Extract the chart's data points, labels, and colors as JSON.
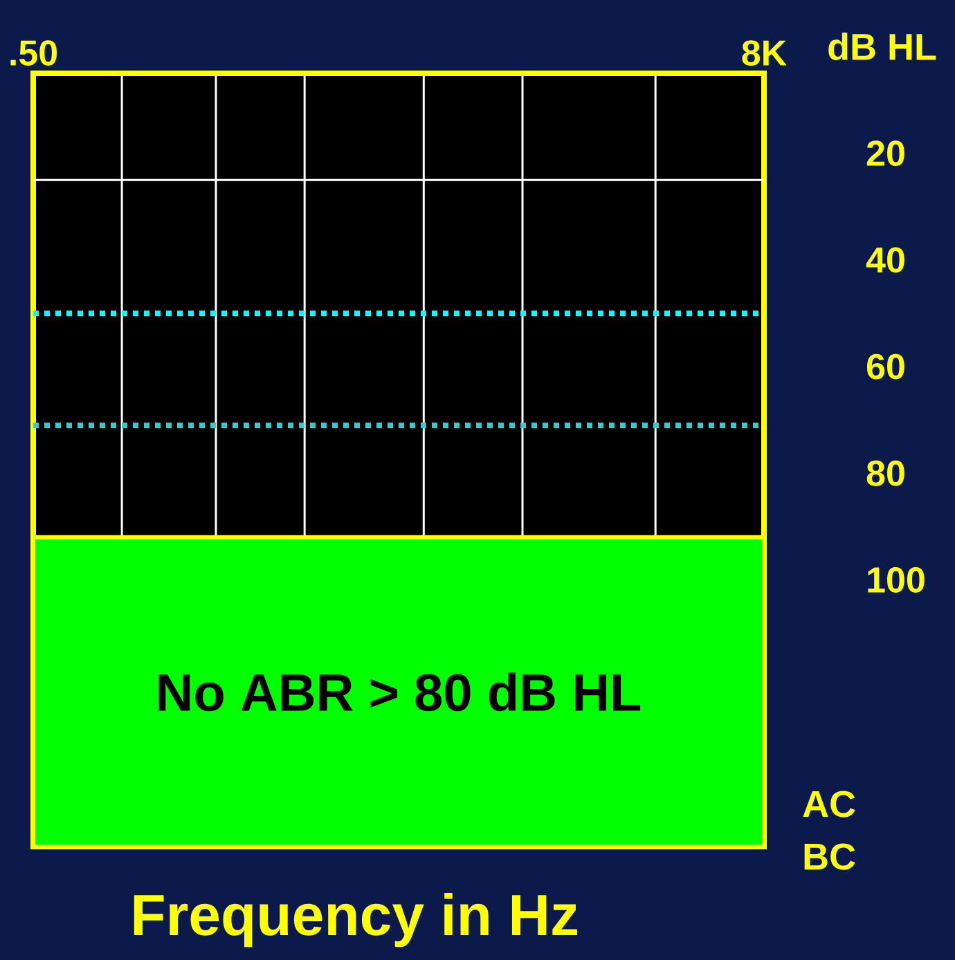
{
  "chart_data": {
    "type": "line",
    "xlabel": "Frequency in Hz",
    "ylabel": "dB HL",
    "log": "x",
    "grid": "x",
    "xlim": [
      0.5,
      8
    ],
    "xticks": [
      {
        "value": 0.5,
        "label": ".50"
      },
      {
        "value": 0.7,
        "label": null
      },
      {
        "value": 1,
        "label": null
      },
      {
        "value": 1.4,
        "label": null
      },
      {
        "value": 2.2,
        "label": null
      },
      {
        "value": 3.2,
        "label": null
      },
      {
        "value": 5.3,
        "label": null
      },
      {
        "value": 8,
        "label": "8K"
      }
    ],
    "ylim": [
      150,
      5
    ],
    "yticks": [
      20,
      40,
      60,
      80,
      100
    ],
    "ref_lines": [
      {
        "axis": "y",
        "value": 25,
        "color": "#ffffff",
        "line_style": "solid"
      },
      {
        "axis": "y",
        "value": 50,
        "color": "#00ffff",
        "line_style": "dotted"
      },
      {
        "axis": "y",
        "value": 71,
        "color": "#33cccc",
        "line_style": "dotted"
      }
    ],
    "bands": [
      {
        "axis": "y",
        "from": 92,
        "to": 150,
        "label": "No ABR > 80 dB HL",
        "color": "#00ff00"
      }
    ],
    "annotations": [
      "AC",
      "BC"
    ]
  }
}
